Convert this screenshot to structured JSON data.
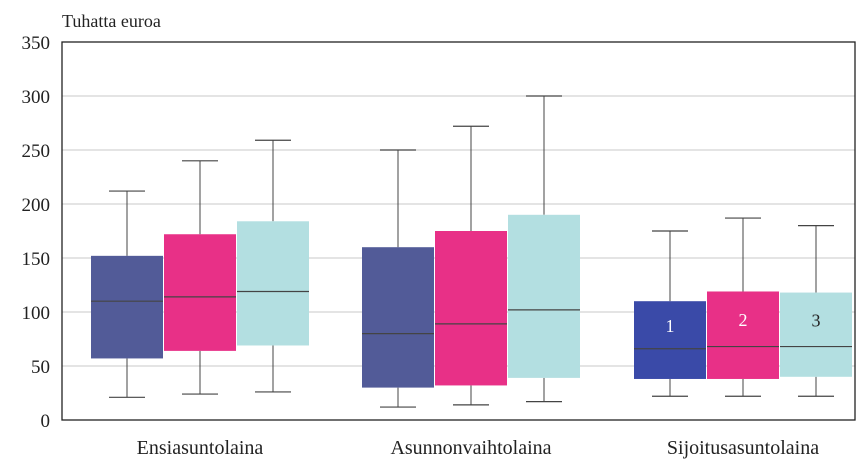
{
  "chart_data": {
    "type": "boxplot",
    "ylabel": "Tuhatta euroa",
    "ylim": [
      0,
      350
    ],
    "yticks": [
      0,
      50,
      100,
      150,
      200,
      250,
      300,
      350
    ],
    "grid": true,
    "categories": [
      "Ensiasuntolaina",
      "Asunnonvaihtolaina",
      "Sijoitusasuntolaina"
    ],
    "series": [
      {
        "name": "1",
        "color": "#525b98",
        "color_alt": "#3a4aa8",
        "boxes": [
          {
            "min": 21,
            "q1": 57,
            "median": 110,
            "q3": 152,
            "max": 212
          },
          {
            "min": 12,
            "q1": 30,
            "median": 80,
            "q3": 160,
            "max": 250
          },
          {
            "min": 22,
            "q1": 38,
            "median": 66,
            "q3": 110,
            "max": 175
          }
        ]
      },
      {
        "name": "2",
        "color": "#e83087",
        "color_alt": "#e83087",
        "boxes": [
          {
            "min": 24,
            "q1": 64,
            "median": 114,
            "q3": 172,
            "max": 240
          },
          {
            "min": 14,
            "q1": 32,
            "median": 89,
            "q3": 175,
            "max": 272
          },
          {
            "min": 22,
            "q1": 38,
            "median": 68,
            "q3": 119,
            "max": 187
          }
        ]
      },
      {
        "name": "3",
        "color": "#b3dfe1",
        "color_alt": "#b3dfe1",
        "boxes": [
          {
            "min": 26,
            "q1": 69,
            "median": 119,
            "q3": 184,
            "max": 259
          },
          {
            "min": 17,
            "q1": 39,
            "median": 102,
            "q3": 190,
            "max": 300
          },
          {
            "min": 22,
            "q1": 40,
            "median": 68,
            "q3": 118,
            "max": 180
          }
        ]
      }
    ],
    "box_labels": [
      "1",
      "2",
      "3"
    ],
    "box_label_category": 2
  },
  "colors": {
    "grid": "#c8c8c8",
    "axis": "#222222",
    "whisker": "#444444",
    "median": "#444444"
  }
}
